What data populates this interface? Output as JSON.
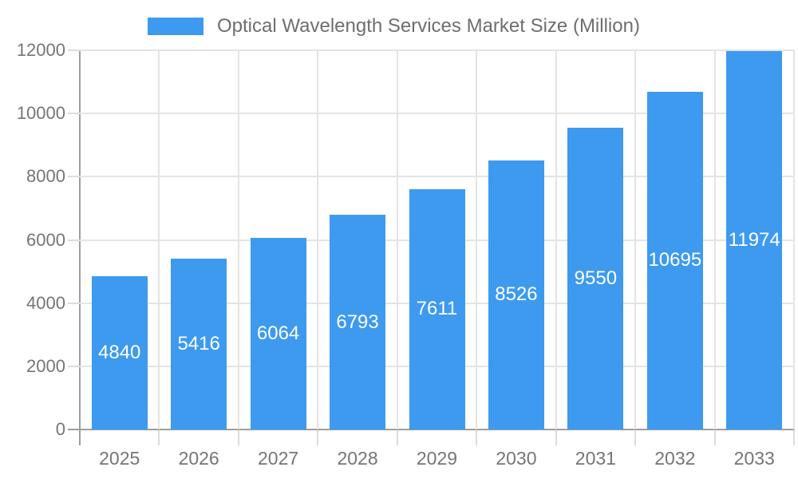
{
  "colors": {
    "bar": "#3D9AEF",
    "gridline": "#E4E4E4",
    "axis_line": "#9E9E9E",
    "tick": "#DCDCDC",
    "tick_label": "#757575",
    "legend_text": "#6E6E6E",
    "value_label": "#FFFFFF",
    "background": "#FFFFFF"
  },
  "legend": {
    "label": "Optical Wavelength Services Market Size (Million)",
    "position": "top-center"
  },
  "chart_data": {
    "type": "bar",
    "title": "Optical Wavelength Services Market Size (Million)",
    "categories": [
      "2025",
      "2026",
      "2027",
      "2028",
      "2029",
      "2030",
      "2031",
      "2032",
      "2033"
    ],
    "values": [
      4840,
      5416,
      6064,
      6793,
      7611,
      8526,
      9550,
      10695,
      11974
    ],
    "series": [
      {
        "name": "Optical Wavelength Services Market Size (Million)",
        "values": [
          4840,
          5416,
          6064,
          6793,
          7611,
          8526,
          9550,
          10695,
          11974
        ]
      }
    ],
    "xlabel": "",
    "ylabel": "",
    "ylim": [
      0,
      12000
    ],
    "yticks": [
      0,
      2000,
      4000,
      6000,
      8000,
      10000,
      12000
    ],
    "grid": true,
    "legend_position": "top",
    "value_label_position": "inside-center"
  }
}
